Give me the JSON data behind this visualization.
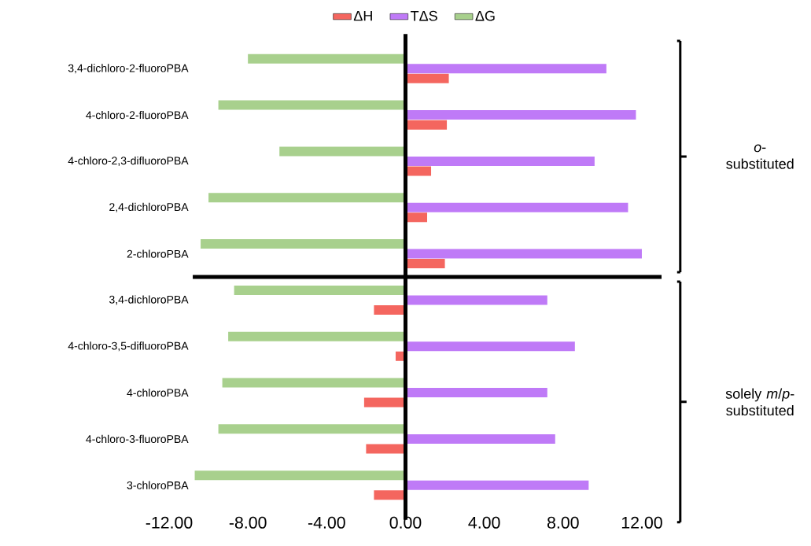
{
  "chart_data": {
    "type": "bar",
    "orientation": "horizontal",
    "categories": [
      "3,4-dichloro-2-fluoroPBA",
      "4-chloro-2-fluoroPBA",
      "4-chloro-2,3-difluoroPBA",
      "2,4-dichloroPBA",
      "2-chloroPBA",
      "3,4-dichloroPBA",
      "4-chloro-3,5-difluoroPBA",
      "4-chloroPBA",
      "4-chloro-3-fluoroPBA",
      "3-chloroPBA"
    ],
    "series": [
      {
        "name": "ΔH",
        "color": "#f4665f",
        "values": [
          2.2,
          2.1,
          1.3,
          1.1,
          2.0,
          -1.6,
          -0.5,
          -2.1,
          -2.0,
          -1.6
        ]
      },
      {
        "name": "TΔS",
        "color": "#bf7af7",
        "values": [
          10.2,
          11.7,
          9.6,
          11.3,
          12.0,
          7.2,
          8.6,
          7.2,
          7.6,
          9.3
        ]
      },
      {
        "name": "ΔG",
        "color": "#a8d08d",
        "values": [
          -8.0,
          -9.5,
          -6.4,
          -10.0,
          -10.4,
          -8.7,
          -9.0,
          -9.3,
          -9.5,
          -10.7
        ]
      }
    ],
    "xlim": [
      -12,
      13
    ],
    "xticks": [
      {
        "value": -12,
        "label": "-12.00"
      },
      {
        "value": -8,
        "label": "-8.00"
      },
      {
        "value": -4,
        "label": "-4.00"
      },
      {
        "value": 0,
        "label": "0.00"
      },
      {
        "value": 4,
        "label": "4.00"
      },
      {
        "value": 8,
        "label": "8.00"
      },
      {
        "value": 12,
        "label": "12.00"
      }
    ],
    "annotations": [
      "*o*-substituted",
      "solely *m*/*p*-substituted"
    ],
    "legend": "top"
  }
}
